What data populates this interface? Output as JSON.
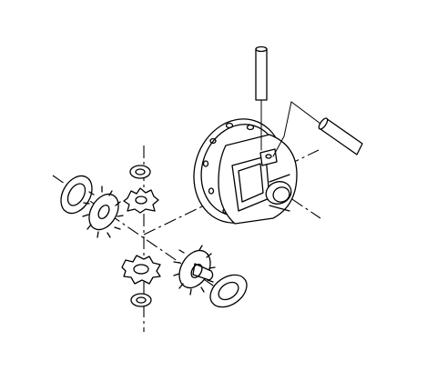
{
  "diagram": {
    "kind": "exploded-view",
    "labels": [],
    "parts": [
      "differential-case",
      "pinion-shaft",
      "lock-pin",
      "side-gear-left",
      "side-gear-right",
      "pinion-gear-upper",
      "pinion-gear-lower",
      "thrust-washer-left",
      "thrust-washer-right",
      "pinion-washer-upper",
      "pinion-washer-lower"
    ],
    "colors": {
      "ink": "#000000",
      "paper": "#ffffff"
    }
  }
}
